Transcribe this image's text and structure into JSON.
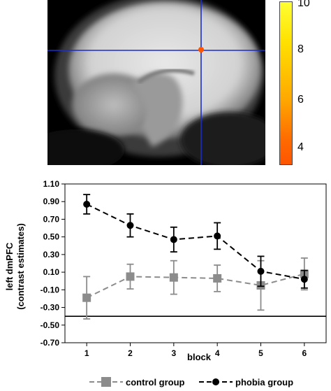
{
  "colorbar": {
    "ticks": [
      "10",
      "8",
      "6",
      "4"
    ],
    "colors": {
      "top": "#ffff33",
      "bottom": "#ff5500"
    }
  },
  "crosshair_color": "#1a2ecc",
  "activation_color": "#ff5500",
  "chart_data": {
    "type": "line",
    "xlabel": "block",
    "ylabel": [
      "left dmPFC",
      "(contrast estimates)"
    ],
    "x": [
      1,
      2,
      3,
      4,
      5,
      6
    ],
    "ylim": [
      -0.7,
      1.1
    ],
    "yticks": [
      "1.10",
      "0.90",
      "0.70",
      "0.50",
      "0.30",
      "0.10",
      "-0.10",
      "-0.30",
      "-0.50",
      "-0.70"
    ],
    "baseline_y": -0.4,
    "series": [
      {
        "name": "control group",
        "color": "#8c8c8c",
        "marker": "square",
        "dash": "dashed",
        "values": [
          -0.19,
          0.05,
          0.04,
          0.03,
          -0.05,
          0.08
        ],
        "error": [
          0.24,
          0.14,
          0.19,
          0.15,
          0.28,
          0.18
        ]
      },
      {
        "name": "phobia group",
        "color": "#000000",
        "marker": "circle",
        "dash": "dashed",
        "values": [
          0.87,
          0.63,
          0.47,
          0.51,
          0.11,
          0.02
        ],
        "error": [
          0.11,
          0.13,
          0.14,
          0.15,
          0.17,
          0.1
        ]
      }
    ]
  }
}
